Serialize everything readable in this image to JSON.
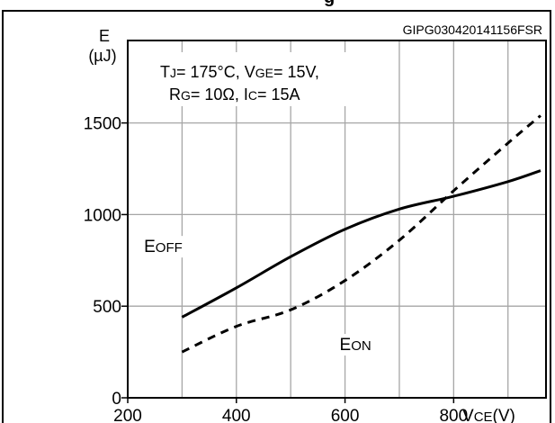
{
  "chart_data": {
    "type": "line",
    "title": "g",
    "code": "GIPG030420141156FSR",
    "ylabel": {
      "main": "E",
      "unit": "(µJ)"
    },
    "xlabel": {
      "main": "V",
      "sub": "CE",
      "unit": "(V)"
    },
    "xlim": [
      200,
      970
    ],
    "ylim": [
      0,
      1950
    ],
    "xticks": [
      200,
      400,
      600,
      800
    ],
    "yticks": [
      0,
      500,
      1000,
      1500
    ],
    "xgrid": [
      300,
      400,
      500,
      600,
      700,
      800,
      900
    ],
    "ygrid": [
      500,
      1000,
      1500
    ],
    "grid": true,
    "conditions": {
      "line1": [
        {
          "text": "T",
          "sub": false
        },
        {
          "text": "J",
          "sub": true
        },
        {
          "text": "= 175°C, V",
          "sub": false
        },
        {
          "text": "GE",
          "sub": true
        },
        {
          "text": "= 15V,",
          "sub": false
        }
      ],
      "line2": [
        {
          "text": "R",
          "sub": false
        },
        {
          "text": "G",
          "sub": true
        },
        {
          "text": "= 10Ω, I",
          "sub": false
        },
        {
          "text": "C",
          "sub": true
        },
        {
          "text": "= 15A",
          "sub": false
        }
      ]
    },
    "series": [
      {
        "name": "E",
        "name_sub": "OFF",
        "style": "solid",
        "x": [
          300,
          400,
          500,
          600,
          700,
          800,
          900,
          960
        ],
        "y": [
          440,
          600,
          770,
          920,
          1030,
          1100,
          1180,
          1240
        ],
        "label_at": [
          230,
          795
        ]
      },
      {
        "name": "E",
        "name_sub": "ON",
        "style": "dashed",
        "x": [
          300,
          400,
          500,
          600,
          700,
          800,
          900,
          960
        ],
        "y": [
          250,
          390,
          480,
          640,
          860,
          1130,
          1390,
          1540
        ],
        "label_at": [
          590,
          260
        ]
      }
    ]
  }
}
